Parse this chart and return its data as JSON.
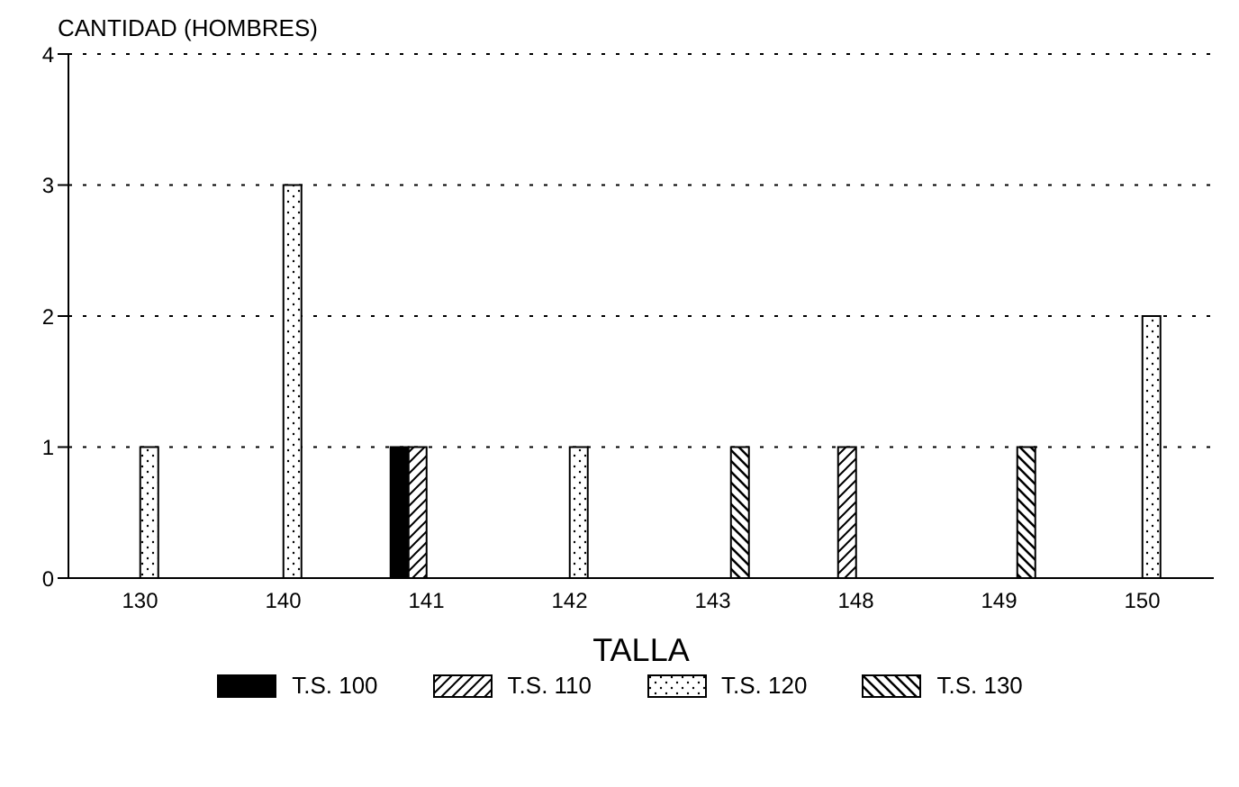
{
  "chart_data": {
    "type": "bar",
    "ylabel": "CANTIDAD (HOMBRES)",
    "xlabel": "TALLA",
    "categories": [
      "130",
      "140",
      "141",
      "142",
      "143",
      "148",
      "149",
      "150"
    ],
    "series": [
      {
        "name": "T.S. 100",
        "color": "#000000",
        "values": [
          null,
          null,
          1,
          null,
          null,
          null,
          null,
          null
        ]
      },
      {
        "name": "T.S. 110",
        "color": "#000000",
        "values": [
          null,
          null,
          1,
          null,
          null,
          1,
          null,
          null
        ]
      },
      {
        "name": "T.S. 120",
        "color": "#000000",
        "values": [
          1,
          3,
          null,
          1,
          null,
          null,
          null,
          2
        ]
      },
      {
        "name": "T.S. 130",
        "color": "#000000",
        "values": [
          null,
          null,
          null,
          null,
          1,
          null,
          1,
          null
        ]
      }
    ],
    "ylim": [
      0,
      4
    ],
    "yticks": [
      0,
      1,
      2,
      3,
      4
    ],
    "grid": "y",
    "legend": "bottom"
  }
}
